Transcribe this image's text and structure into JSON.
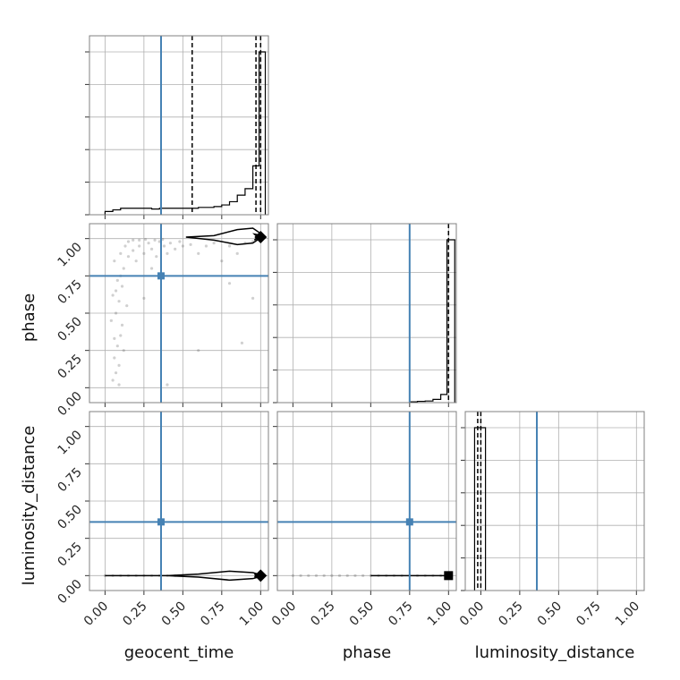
{
  "parameters": [
    "geocent_time",
    "phase",
    "luminosity_distance"
  ],
  "truths": {
    "geocent_time": 0.36,
    "phase": 0.75,
    "luminosity_distance": 0.36
  },
  "colors": {
    "truth": "#4682b4",
    "hist": "#000000",
    "samples": "#555555"
  },
  "tick_labels": [
    "0.00",
    "0.25",
    "0.50",
    "0.75",
    "1.00"
  ],
  "chart_data": {
    "type": "corner",
    "grid": true,
    "panels": [
      {
        "kind": "histogram",
        "parameter": "geocent_time",
        "xlim": [
          -0.1,
          1.05
        ],
        "bin_edges": [
          0.0,
          0.05,
          0.1,
          0.15,
          0.2,
          0.25,
          0.3,
          0.35,
          0.4,
          0.45,
          0.5,
          0.55,
          0.6,
          0.65,
          0.7,
          0.75,
          0.8,
          0.85,
          0.9,
          0.95,
          0.99,
          1.03
        ],
        "density": [
          0.02,
          0.03,
          0.04,
          0.04,
          0.04,
          0.04,
          0.035,
          0.04,
          0.04,
          0.04,
          0.04,
          0.04,
          0.045,
          0.045,
          0.05,
          0.06,
          0.08,
          0.12,
          0.16,
          0.3,
          1.0
        ],
        "quantiles": [
          0.56,
          0.97,
          1.0
        ],
        "truth": 0.36
      },
      {
        "kind": "histogram",
        "parameter": "phase",
        "xlim": [
          -0.1,
          1.05
        ],
        "bin_edges": [
          0.75,
          0.8,
          0.85,
          0.9,
          0.95,
          0.99,
          1.04
        ],
        "density": [
          0.005,
          0.008,
          0.01,
          0.02,
          0.05,
          1.0
        ],
        "quantiles": [
          1.0
        ],
        "truth": 0.75
      },
      {
        "kind": "histogram",
        "parameter": "luminosity_distance",
        "xlim": [
          -0.1,
          1.05
        ],
        "bin_edges": [
          -0.04,
          0.03
        ],
        "density": [
          1.0
        ],
        "quantiles": [
          -0.02,
          0.0
        ],
        "truth": 0.36
      },
      {
        "kind": "scatter",
        "x": "geocent_time",
        "y": "phase",
        "xlim": [
          -0.1,
          1.05
        ],
        "ylim": [
          -0.1,
          1.1
        ],
        "truth": [
          0.36,
          0.75
        ],
        "points": [
          [
            0.05,
            0.05
          ],
          [
            0.07,
            0.1
          ],
          [
            0.09,
            0.02
          ],
          [
            0.06,
            0.2
          ],
          [
            0.08,
            0.28
          ],
          [
            0.1,
            0.35
          ],
          [
            0.04,
            0.45
          ],
          [
            0.07,
            0.5
          ],
          [
            0.09,
            0.58
          ],
          [
            0.05,
            0.62
          ],
          [
            0.11,
            0.68
          ],
          [
            0.08,
            0.72
          ],
          [
            0.12,
            0.8
          ],
          [
            0.06,
            0.85
          ],
          [
            0.1,
            0.9
          ],
          [
            0.13,
            0.95
          ],
          [
            0.09,
            0.15
          ],
          [
            0.11,
            0.42
          ],
          [
            0.12,
            0.25
          ],
          [
            0.06,
            0.33
          ],
          [
            0.14,
            0.55
          ],
          [
            0.07,
            0.65
          ],
          [
            0.1,
            0.75
          ],
          [
            0.15,
            0.88
          ],
          [
            0.18,
            0.92
          ],
          [
            0.2,
            0.85
          ],
          [
            0.22,
            0.95
          ],
          [
            0.25,
            0.9
          ],
          [
            0.28,
            0.97
          ],
          [
            0.3,
            0.93
          ],
          [
            0.33,
            0.88
          ],
          [
            0.35,
            0.98
          ],
          [
            0.38,
            0.95
          ],
          [
            0.4,
            0.9
          ],
          [
            0.42,
            0.97
          ],
          [
            0.45,
            0.93
          ],
          [
            0.48,
            0.98
          ],
          [
            0.5,
            0.95
          ],
          [
            0.55,
            0.96
          ],
          [
            0.6,
            0.9
          ],
          [
            0.65,
            0.95
          ],
          [
            0.7,
            0.97
          ],
          [
            0.75,
            0.85
          ],
          [
            0.8,
            0.95
          ],
          [
            0.85,
            0.9
          ],
          [
            0.9,
            0.97
          ],
          [
            0.95,
            0.98
          ],
          [
            0.88,
            0.3
          ],
          [
            0.95,
            0.6
          ],
          [
            0.8,
            0.7
          ],
          [
            0.6,
            0.25
          ],
          [
            0.4,
            0.02
          ],
          [
            0.25,
            0.6
          ],
          [
            0.3,
            0.8
          ],
          [
            0.15,
            0.98
          ],
          [
            0.18,
            0.99
          ],
          [
            0.22,
            0.99
          ],
          [
            0.26,
            0.995
          ],
          [
            0.32,
            0.99
          ],
          [
            0.37,
            0.995
          ]
        ],
        "contour_outer": [
          [
            0.52,
            1.01
          ],
          [
            0.7,
            1.02
          ],
          [
            0.85,
            1.06
          ],
          [
            0.95,
            1.07
          ],
          [
            1.02,
            1.02
          ],
          [
            0.95,
            0.97
          ],
          [
            0.85,
            0.96
          ],
          [
            0.7,
            0.99
          ],
          [
            0.52,
            1.01
          ]
        ],
        "contour_inner": [
          [
            0.96,
            1.03
          ],
          [
            1.01,
            1.02
          ],
          [
            0.96,
            0.99
          ],
          [
            0.98,
            1.01
          ],
          [
            0.96,
            1.03
          ]
        ],
        "mode": [
          1.0,
          1.01
        ]
      },
      {
        "kind": "scatter",
        "x": "geocent_time",
        "y": "luminosity_distance",
        "xlim": [
          -0.1,
          1.05
        ],
        "ylim": [
          -0.1,
          1.1
        ],
        "truth": [
          0.36,
          0.36
        ],
        "points": [
          [
            0.0,
            0.0
          ],
          [
            0.05,
            0.0
          ],
          [
            0.1,
            0.0
          ],
          [
            0.15,
            0.0
          ],
          [
            0.2,
            0.0
          ],
          [
            0.25,
            0.0
          ],
          [
            0.3,
            0.0
          ],
          [
            0.35,
            0.0
          ],
          [
            0.4,
            0.0
          ],
          [
            0.45,
            0.0
          ],
          [
            0.5,
            0.0
          ]
        ],
        "contour_outer": [
          [
            0.0,
            0.0
          ],
          [
            0.4,
            0.0
          ],
          [
            0.6,
            0.01
          ],
          [
            0.8,
            0.03
          ],
          [
            0.95,
            0.02
          ],
          [
            1.02,
            0.0
          ],
          [
            0.95,
            -0.02
          ],
          [
            0.8,
            -0.03
          ],
          [
            0.6,
            -0.01
          ],
          [
            0.4,
            0.0
          ],
          [
            0.0,
            0.0
          ]
        ],
        "contour_inner": [
          [
            0.96,
            0.01
          ],
          [
            1.01,
            0.0
          ],
          [
            0.96,
            -0.01
          ],
          [
            0.98,
            0.0
          ],
          [
            0.96,
            0.01
          ]
        ],
        "mode": [
          1.0,
          0.0
        ]
      },
      {
        "kind": "scatter",
        "x": "phase",
        "y": "luminosity_distance",
        "xlim": [
          -0.1,
          1.05
        ],
        "ylim": [
          -0.1,
          1.1
        ],
        "truth": [
          0.75,
          0.36
        ],
        "points": [
          [
            0.0,
            0.0
          ],
          [
            0.05,
            0.0
          ],
          [
            0.1,
            0.0
          ],
          [
            0.15,
            0.0
          ],
          [
            0.2,
            0.0
          ],
          [
            0.25,
            0.0
          ],
          [
            0.3,
            0.0
          ],
          [
            0.35,
            0.0
          ],
          [
            0.4,
            0.0
          ],
          [
            0.45,
            0.0
          ],
          [
            0.5,
            0.0
          ],
          [
            0.55,
            0.0
          ],
          [
            0.6,
            0.0
          ],
          [
            0.65,
            0.0
          ],
          [
            0.7,
            0.0
          ],
          [
            0.75,
            0.0
          ],
          [
            0.8,
            0.0
          ],
          [
            0.85,
            0.0
          ],
          [
            0.9,
            0.0
          ],
          [
            0.95,
            0.0
          ],
          [
            0.98,
            0.0
          ]
        ],
        "solid_line": [
          [
            0.5,
            0.0
          ],
          [
            1.0,
            0.0
          ]
        ],
        "mode": [
          1.0,
          0.0
        ]
      }
    ]
  }
}
